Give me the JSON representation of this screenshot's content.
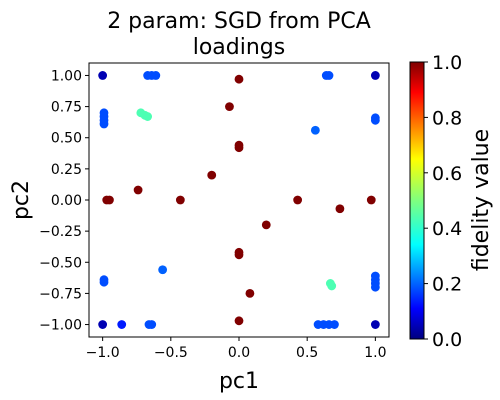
{
  "chart_data": {
    "type": "scatter",
    "title_lines": [
      "2 param:  SGD from PCA",
      "loadings"
    ],
    "xlabel": "pc1",
    "ylabel": "pc2",
    "xlim": [
      -1.1,
      1.1
    ],
    "ylim": [
      -1.1,
      1.1
    ],
    "xticks": [
      -1.0,
      -0.5,
      0.0,
      0.5,
      1.0
    ],
    "xtick_labels": [
      "−1.0",
      "−0.5",
      "0.0",
      "0.5",
      "1.0"
    ],
    "yticks": [
      1.0,
      0.75,
      0.5,
      0.25,
      0.0,
      -0.25,
      -0.5,
      -0.75,
      -1.0
    ],
    "ytick_labels": [
      "1.00",
      "0.75",
      "0.50",
      "0.25",
      "0.00",
      "−0.25",
      "−0.50",
      "−0.75",
      "−1.00"
    ],
    "grid": false,
    "colorbar": {
      "label": "fidelity value",
      "colormap": "jet",
      "range": [
        0.0,
        1.0
      ],
      "ticks": [
        0.0,
        0.2,
        0.4,
        0.6,
        0.8,
        1.0
      ],
      "tick_labels": [
        "0.0",
        "0.2",
        "0.4",
        "0.6",
        "0.8",
        "1.0"
      ]
    },
    "points": [
      {
        "x": -1.0,
        "y": 1.0,
        "fidelity": 0.05
      },
      {
        "x": 1.0,
        "y": 1.0,
        "fidelity": 0.05
      },
      {
        "x": -1.0,
        "y": -1.0,
        "fidelity": 0.05
      },
      {
        "x": 1.0,
        "y": -1.0,
        "fidelity": 0.05
      },
      {
        "x": -0.67,
        "y": 1.0,
        "fidelity": 0.2
      },
      {
        "x": -0.64,
        "y": 1.0,
        "fidelity": 0.2
      },
      {
        "x": -0.61,
        "y": 1.0,
        "fidelity": 0.2
      },
      {
        "x": 0.64,
        "y": 1.0,
        "fidelity": 0.2
      },
      {
        "x": 0.66,
        "y": 1.0,
        "fidelity": 0.2
      },
      {
        "x": 0.0,
        "y": 0.97,
        "fidelity": 1.0
      },
      {
        "x": -0.72,
        "y": 0.7,
        "fidelity": 0.45
      },
      {
        "x": -0.69,
        "y": 0.68,
        "fidelity": 0.45
      },
      {
        "x": -0.67,
        "y": 0.67,
        "fidelity": 0.45
      },
      {
        "x": -0.99,
        "y": 0.7,
        "fidelity": 0.2
      },
      {
        "x": -0.99,
        "y": 0.67,
        "fidelity": 0.2
      },
      {
        "x": -0.99,
        "y": 0.64,
        "fidelity": 0.2
      },
      {
        "x": -0.99,
        "y": 0.61,
        "fidelity": 0.2
      },
      {
        "x": 1.0,
        "y": 0.66,
        "fidelity": 0.2
      },
      {
        "x": 1.0,
        "y": 0.64,
        "fidelity": 0.2
      },
      {
        "x": -0.07,
        "y": 0.75,
        "fidelity": 1.0
      },
      {
        "x": 0.56,
        "y": 0.56,
        "fidelity": 0.22
      },
      {
        "x": 0.0,
        "y": 0.44,
        "fidelity": 1.0
      },
      {
        "x": 0.0,
        "y": 0.42,
        "fidelity": 1.0
      },
      {
        "x": -0.2,
        "y": 0.2,
        "fidelity": 1.0
      },
      {
        "x": -0.74,
        "y": 0.08,
        "fidelity": 1.0
      },
      {
        "x": -0.97,
        "y": 0.0,
        "fidelity": 1.0
      },
      {
        "x": -0.95,
        "y": 0.0,
        "fidelity": 1.0
      },
      {
        "x": -0.43,
        "y": 0.0,
        "fidelity": 1.0
      },
      {
        "x": 0.43,
        "y": 0.0,
        "fidelity": 1.0
      },
      {
        "x": 0.97,
        "y": 0.0,
        "fidelity": 1.0
      },
      {
        "x": 0.74,
        "y": -0.07,
        "fidelity": 1.0
      },
      {
        "x": 0.2,
        "y": -0.2,
        "fidelity": 1.0
      },
      {
        "x": 0.0,
        "y": -0.42,
        "fidelity": 1.0
      },
      {
        "x": 0.0,
        "y": -0.44,
        "fidelity": 1.0
      },
      {
        "x": -0.56,
        "y": -0.56,
        "fidelity": 0.22
      },
      {
        "x": 0.08,
        "y": -0.75,
        "fidelity": 1.0
      },
      {
        "x": -0.99,
        "y": -0.64,
        "fidelity": 0.2
      },
      {
        "x": -0.99,
        "y": -0.66,
        "fidelity": 0.2
      },
      {
        "x": 1.0,
        "y": -0.61,
        "fidelity": 0.2
      },
      {
        "x": 1.0,
        "y": -0.64,
        "fidelity": 0.2
      },
      {
        "x": 1.0,
        "y": -0.67,
        "fidelity": 0.2
      },
      {
        "x": 1.0,
        "y": -0.7,
        "fidelity": 0.2
      },
      {
        "x": 0.67,
        "y": -0.67,
        "fidelity": 0.45
      },
      {
        "x": 0.68,
        "y": -0.69,
        "fidelity": 0.45
      },
      {
        "x": 0.0,
        "y": -0.97,
        "fidelity": 1.0
      },
      {
        "x": -0.86,
        "y": -1.0,
        "fidelity": 0.15
      },
      {
        "x": -0.66,
        "y": -1.0,
        "fidelity": 0.2
      },
      {
        "x": -0.64,
        "y": -1.0,
        "fidelity": 0.2
      },
      {
        "x": 0.58,
        "y": -1.0,
        "fidelity": 0.2
      },
      {
        "x": 0.62,
        "y": -1.0,
        "fidelity": 0.2
      },
      {
        "x": 0.66,
        "y": -1.0,
        "fidelity": 0.2
      },
      {
        "x": 0.7,
        "y": -1.0,
        "fidelity": 0.2
      }
    ]
  }
}
